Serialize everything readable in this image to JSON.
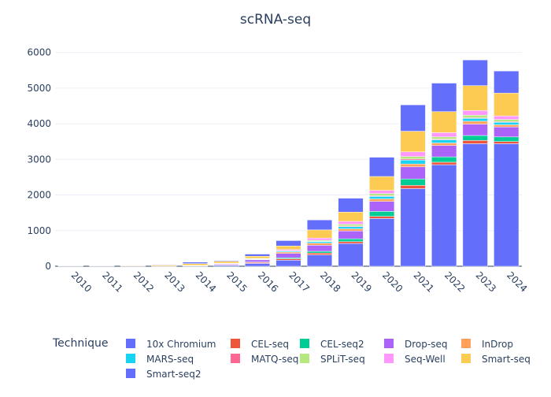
{
  "chart_data": {
    "type": "bar",
    "stacked": true,
    "title": "scRNA-seq",
    "xlabel": "",
    "ylabel": "",
    "categories": [
      "2010",
      "2011",
      "2012",
      "2013",
      "2014",
      "2015",
      "2016",
      "2017",
      "2018",
      "2019",
      "2020",
      "2021",
      "2022",
      "2023",
      "2024"
    ],
    "ylim": [
      0,
      6500
    ],
    "yticks": [
      0,
      1000,
      2000,
      3000,
      4000,
      5000,
      6000
    ],
    "ytick_labels": [
      "0",
      "1000",
      "2000",
      "3000",
      "4000",
      "5000",
      "6000"
    ],
    "grid": true,
    "legend_title": "Technique",
    "legend_position": "bottom",
    "series": [
      {
        "name": "10x Chromium",
        "color": "#636efa",
        "values": [
          0,
          0,
          0,
          0,
          10,
          30,
          80,
          170,
          320,
          640,
          1340,
          2180,
          2850,
          3440,
          3440
        ]
      },
      {
        "name": "CEL-seq",
        "color": "#ef553b",
        "values": [
          0,
          0,
          0,
          2,
          8,
          15,
          25,
          40,
          50,
          50,
          60,
          90,
          70,
          90,
          60
        ]
      },
      {
        "name": "CEL-seq2",
        "color": "#00cc96",
        "values": [
          0,
          0,
          0,
          0,
          2,
          8,
          15,
          30,
          50,
          80,
          140,
          180,
          150,
          140,
          130
        ]
      },
      {
        "name": "Drop-seq",
        "color": "#ab63fa",
        "values": [
          0,
          0,
          0,
          0,
          0,
          20,
          60,
          120,
          170,
          220,
          280,
          340,
          320,
          320,
          280
        ]
      },
      {
        "name": "InDrop",
        "color": "#ffa15a",
        "values": [
          0,
          0,
          0,
          0,
          0,
          5,
          15,
          40,
          60,
          60,
          70,
          80,
          70,
          80,
          60
        ]
      },
      {
        "name": "MARS-seq",
        "color": "#19d3f3",
        "values": [
          0,
          0,
          0,
          2,
          5,
          10,
          15,
          25,
          40,
          60,
          70,
          110,
          90,
          80,
          70
        ]
      },
      {
        "name": "MATQ-seq",
        "color": "#ff6692",
        "values": [
          0,
          0,
          0,
          0,
          0,
          0,
          2,
          5,
          10,
          20,
          20,
          30,
          20,
          20,
          20
        ]
      },
      {
        "name": "SPLiT-seq",
        "color": "#b6e880",
        "values": [
          0,
          0,
          0,
          0,
          0,
          0,
          0,
          10,
          30,
          50,
          60,
          70,
          60,
          70,
          60
        ]
      },
      {
        "name": "Seq-Well",
        "color": "#ff97ff",
        "values": [
          0,
          0,
          0,
          0,
          0,
          0,
          10,
          30,
          60,
          80,
          90,
          130,
          120,
          130,
          100
        ]
      },
      {
        "name": "Smart-seq",
        "color": "#fecb52",
        "values": [
          10,
          10,
          15,
          30,
          50,
          50,
          60,
          100,
          230,
          260,
          390,
          580,
          590,
          700,
          640
        ]
      },
      {
        "name": "Smart-seq2",
        "color": "#636efa",
        "values": [
          5,
          5,
          10,
          15,
          40,
          20,
          60,
          150,
          280,
          390,
          540,
          740,
          800,
          720,
          620
        ]
      }
    ]
  }
}
